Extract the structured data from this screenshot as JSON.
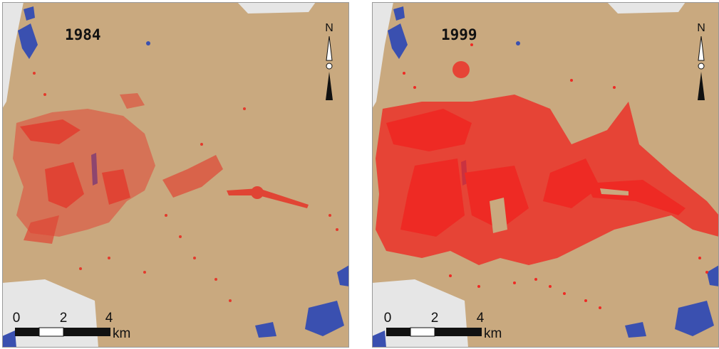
{
  "panels": [
    {
      "year": "1984",
      "north": "N",
      "scale": {
        "labels": [
          "0",
          "2",
          "4"
        ],
        "unit": "km"
      }
    },
    {
      "year": "1999",
      "north": "N",
      "scale": {
        "labels": [
          "0",
          "2",
          "4"
        ],
        "unit": "km"
      }
    }
  ]
}
